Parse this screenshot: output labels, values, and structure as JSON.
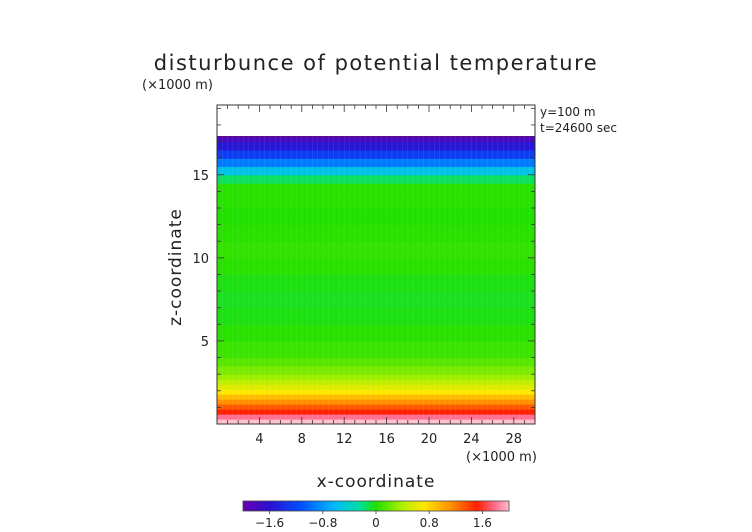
{
  "chart_data": {
    "type": "heatmap",
    "title": "disturbunce of potential temperature",
    "xlabel": "x-coordinate",
    "ylabel": "z-coordinate",
    "x_unit": "(×1000 m)",
    "y_unit": "(×1000 m)",
    "annotations": [
      "y=100 m",
      "t=24600 sec"
    ],
    "xlim": [
      0,
      30
    ],
    "ylim": [
      0,
      19.2
    ],
    "x_ticks": [
      4,
      8,
      12,
      16,
      20,
      24,
      28
    ],
    "y_ticks": [
      5,
      10,
      15
    ],
    "data_top": 17.3,
    "z_levels": [
      0.0,
      0.3,
      0.6,
      0.9,
      1.2,
      1.5,
      1.8,
      2.1,
      2.4,
      2.7,
      3.0,
      3.5,
      4.0,
      5.0,
      6.0,
      7.0,
      8.0,
      9.0,
      10.0,
      11.0,
      12.0,
      13.0,
      14.0,
      14.5,
      15.0,
      15.5,
      16.0,
      16.5,
      17.0,
      17.3
    ],
    "profile_values": [
      2.2,
      1.9,
      1.7,
      1.5,
      1.3,
      1.1,
      0.9,
      0.7,
      0.55,
      0.4,
      0.3,
      0.2,
      0.1,
      0.05,
      0.0,
      -0.05,
      -0.05,
      0.0,
      0.05,
      0.05,
      0.0,
      0.0,
      0.05,
      0.0,
      -0.3,
      -0.7,
      -1.1,
      -1.4,
      -1.7,
      -1.9
    ],
    "colorbar": {
      "min": -2.0,
      "max": 2.0,
      "ticks": [
        "−1.6",
        "−0.8",
        "0",
        "0.8",
        "1.6"
      ],
      "tick_values": [
        -1.6,
        -0.8,
        0,
        0.8,
        1.6
      ]
    },
    "grid": false,
    "legend": "bottom colorbar"
  }
}
